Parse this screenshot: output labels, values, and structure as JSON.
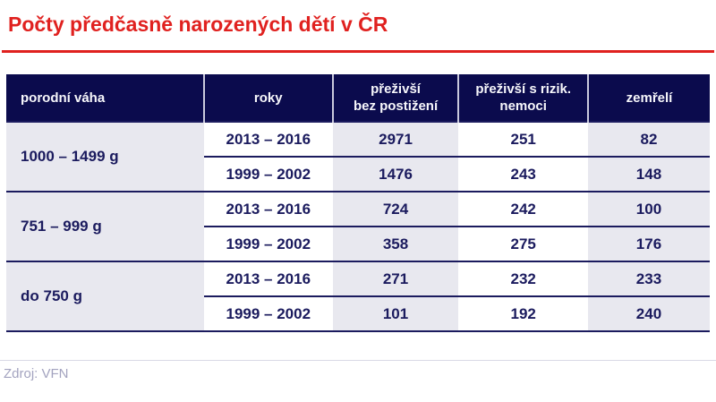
{
  "page": {
    "title": "Počty předčasně narozených dětí v ČR",
    "source": "Zdroj: VFN"
  },
  "colors": {
    "accent_red": "#e0211f",
    "header_navy": "#0b0b4d",
    "text_navy": "#1b1b5e",
    "cell_gray": "#e8e8ef",
    "header_separator": "#c9c9dc",
    "source_gray": "#a3a3bf"
  },
  "table": {
    "headers": [
      {
        "line1": "porodní váha",
        "line2": ""
      },
      {
        "line1": "roky",
        "line2": ""
      },
      {
        "line1": "přeživší",
        "line2": "bez postižení"
      },
      {
        "line1": "přeživší s rizik.",
        "line2": "nemoci"
      },
      {
        "line1": "zemřelí",
        "line2": ""
      }
    ],
    "groups": [
      {
        "weight": "1000 – 1499 g",
        "rows": [
          {
            "years": "2013 – 2016",
            "values": [
              "2971",
              "251",
              "82"
            ]
          },
          {
            "years": "1999 – 2002",
            "values": [
              "1476",
              "243",
              "148"
            ]
          }
        ]
      },
      {
        "weight": "751 – 999 g",
        "rows": [
          {
            "years": "2013 – 2016",
            "values": [
              "724",
              "242",
              "100"
            ]
          },
          {
            "years": "1999 – 2002",
            "values": [
              "358",
              "275",
              "176"
            ]
          }
        ]
      },
      {
        "weight": "do 750 g",
        "rows": [
          {
            "years": "2013 – 2016",
            "values": [
              "271",
              "232",
              "233"
            ]
          },
          {
            "years": "1999 – 2002",
            "values": [
              "101",
              "192",
              "240"
            ]
          }
        ]
      }
    ]
  },
  "chart_data": {
    "type": "table",
    "title": "Počty předčasně narozených dětí v ČR",
    "columns": [
      "porodní váha",
      "roky",
      "přeživší bez postižení",
      "přeživší s rizik. nemoci",
      "zemřelí"
    ],
    "rows": [
      [
        "1000 – 1499 g",
        "2013 – 2016",
        2971,
        251,
        82
      ],
      [
        "1000 – 1499 g",
        "1999 – 2002",
        1476,
        243,
        148
      ],
      [
        "751 – 999 g",
        "2013 – 2016",
        724,
        242,
        100
      ],
      [
        "751 – 999 g",
        "1999 – 2002",
        358,
        275,
        176
      ],
      [
        "do 750 g",
        "2013 – 2016",
        271,
        232,
        233
      ],
      [
        "do 750 g",
        "1999 – 2002",
        101,
        192,
        240
      ]
    ],
    "source": "Zdroj: VFN"
  }
}
